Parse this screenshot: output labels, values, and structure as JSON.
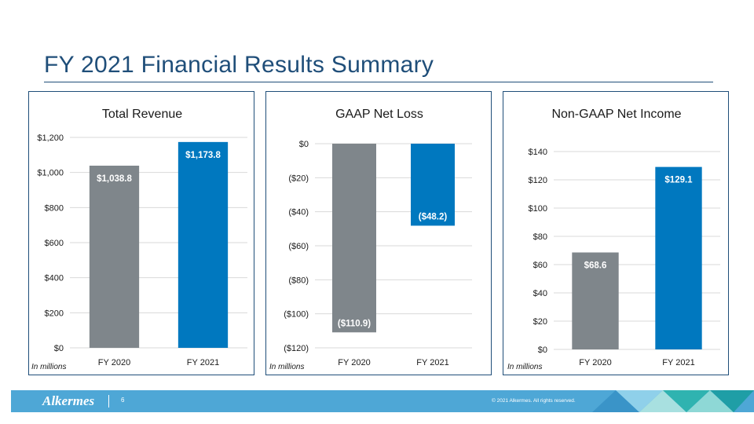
{
  "slide": {
    "title": "FY 2021 Financial Results Summary",
    "footer": {
      "logo": "Alkermes",
      "page_number": "6",
      "copyright": "© 2021 Alkermes. All rights reserved."
    }
  },
  "colors": {
    "fy2020": "#7f868b",
    "fy2021": "#0078bf",
    "accent": "#1f4e79",
    "footer": "#4ea7d6"
  },
  "chart_data": [
    {
      "type": "bar",
      "title": "Total Revenue",
      "categories": [
        "FY 2020",
        "FY 2021"
      ],
      "values": [
        1038.8,
        1173.8
      ],
      "data_labels": [
        "$1,038.8",
        "$1,173.8"
      ],
      "ylim": [
        0,
        1200
      ],
      "yticks": [
        0,
        200,
        400,
        600,
        800,
        1000,
        1200
      ],
      "ytick_labels": [
        "$0",
        "$200",
        "$400",
        "$600",
        "$800",
        "$1,000",
        "$1,200"
      ],
      "note": "In millions",
      "grid": true
    },
    {
      "type": "bar",
      "title": "GAAP Net Loss",
      "categories": [
        "FY 2020",
        "FY 2021"
      ],
      "values": [
        -110.9,
        -48.2
      ],
      "data_labels": [
        "($110.9)",
        "($48.2)"
      ],
      "ylim": [
        -120,
        0
      ],
      "yticks": [
        0,
        -20,
        -40,
        -60,
        -80,
        -100,
        -120
      ],
      "ytick_labels": [
        "$0",
        "($20)",
        "($40)",
        "($60)",
        "($80)",
        "($100)",
        "($120)"
      ],
      "note": "In millions",
      "grid": true
    },
    {
      "type": "bar",
      "title": "Non-GAAP Net Income",
      "categories": [
        "FY 2020",
        "FY 2021"
      ],
      "values": [
        68.6,
        129.1
      ],
      "data_labels": [
        "$68.6",
        "$129.1"
      ],
      "ylim": [
        0,
        140
      ],
      "yticks": [
        0,
        20,
        40,
        60,
        80,
        100,
        120,
        140
      ],
      "ytick_labels": [
        "$0",
        "$20",
        "$40",
        "$60",
        "$80",
        "$100",
        "$120",
        "$140"
      ],
      "note": "In millions",
      "grid": true
    }
  ]
}
